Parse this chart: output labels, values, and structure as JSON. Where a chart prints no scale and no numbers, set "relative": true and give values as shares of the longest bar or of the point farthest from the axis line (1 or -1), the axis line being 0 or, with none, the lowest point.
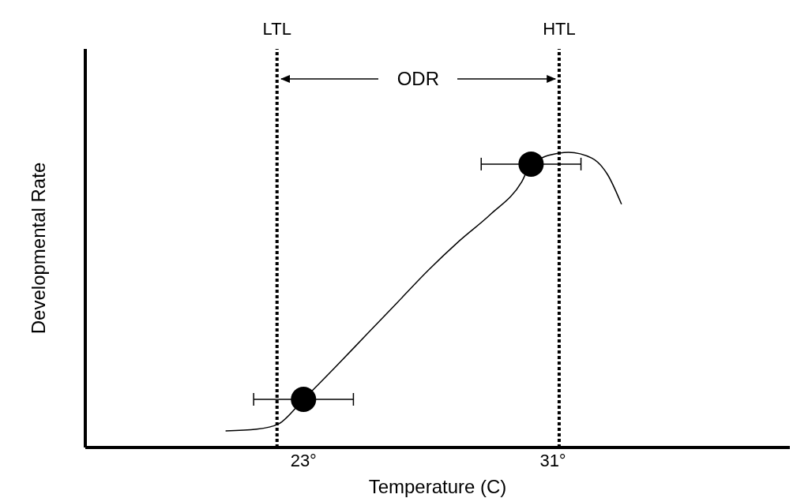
{
  "chart_data": {
    "type": "line",
    "xlabel": "Temperature (C)",
    "ylabel": "Developmental Rate",
    "relative": true,
    "xlim": [
      16,
      38.6
    ],
    "xticks": [
      {
        "value": 23,
        "label": "23°"
      },
      {
        "value": 31,
        "label": "31°"
      }
    ],
    "grid": false,
    "legend": false,
    "series": [
      {
        "color": "#000000",
        "marker": "none",
        "x": [
          20.5,
          21.5,
          22.2,
          23,
          24,
          25,
          26,
          27,
          28,
          29,
          30,
          30.3,
          31.2,
          31.5,
          32.25,
          32.75,
          33.2
        ],
        "values": [
          0.056,
          0.062,
          0.08,
          0.163,
          0.27,
          0.38,
          0.49,
          0.6,
          0.7,
          0.79,
          0.9,
          0.96,
          0.997,
          1.0,
          0.98,
          0.925,
          0.824
        ]
      },
      {
        "type": "scatter",
        "color": "#000000",
        "marker": "circle",
        "x": [
          23,
          30.3
        ],
        "values": [
          0.163,
          0.96
        ],
        "xerrors": [
          [
            21.4,
            24.6
          ],
          [
            28.7,
            31.9
          ]
        ]
      }
    ],
    "ref_lines": [
      {
        "axis": "x",
        "value": 22.15,
        "label": "LTL",
        "line_style": "dotted",
        "color": "#000000"
      },
      {
        "axis": "x",
        "value": 31.2,
        "label": "HTL",
        "line_style": "dotted",
        "color": "#000000"
      }
    ],
    "annotations": [
      "ODR"
    ]
  }
}
